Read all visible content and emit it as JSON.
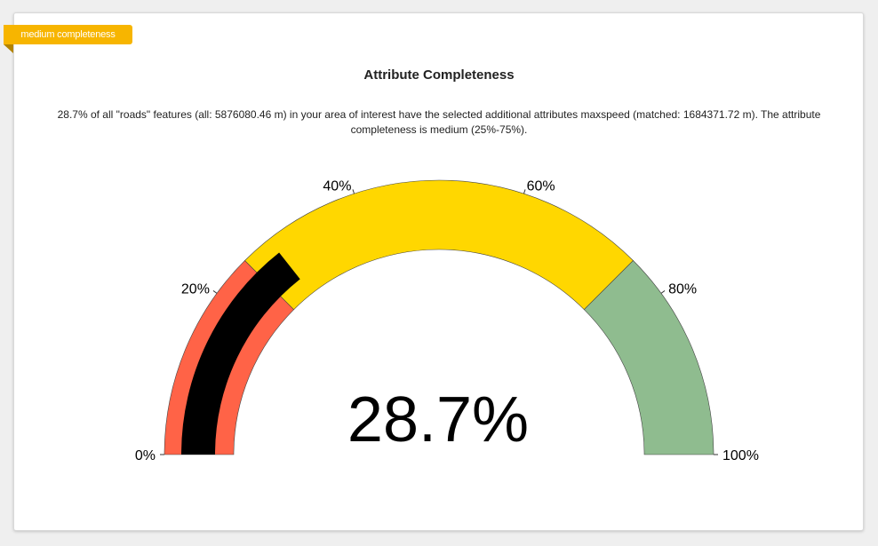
{
  "badge": {
    "label": "medium completeness"
  },
  "indicator": {
    "title": "Attribute Completeness",
    "description": "28.7% of all \"roads\" features (all: 5876080.46 m) in your area of interest have the selected additional attributes maxspeed (matched: 1684371.72 m). The attribute completeness is medium (25%-75%)."
  },
  "chart_data": {
    "type": "gauge",
    "value": 28.7,
    "value_label": "28.7%",
    "range": [
      0,
      100
    ],
    "bands": [
      {
        "from": 0,
        "to": 25,
        "color": "#ff6347"
      },
      {
        "from": 25,
        "to": 75,
        "color": "#ffd700"
      },
      {
        "from": 75,
        "to": 100,
        "color": "#8fbc8f"
      }
    ],
    "needle_color": "#000000",
    "ticks": [
      {
        "value": 0,
        "label": "0%"
      },
      {
        "value": 20,
        "label": "20%"
      },
      {
        "value": 40,
        "label": "40%"
      },
      {
        "value": 60,
        "label": "60%"
      },
      {
        "value": 80,
        "label": "80%"
      },
      {
        "value": 100,
        "label": "100%"
      }
    ]
  }
}
